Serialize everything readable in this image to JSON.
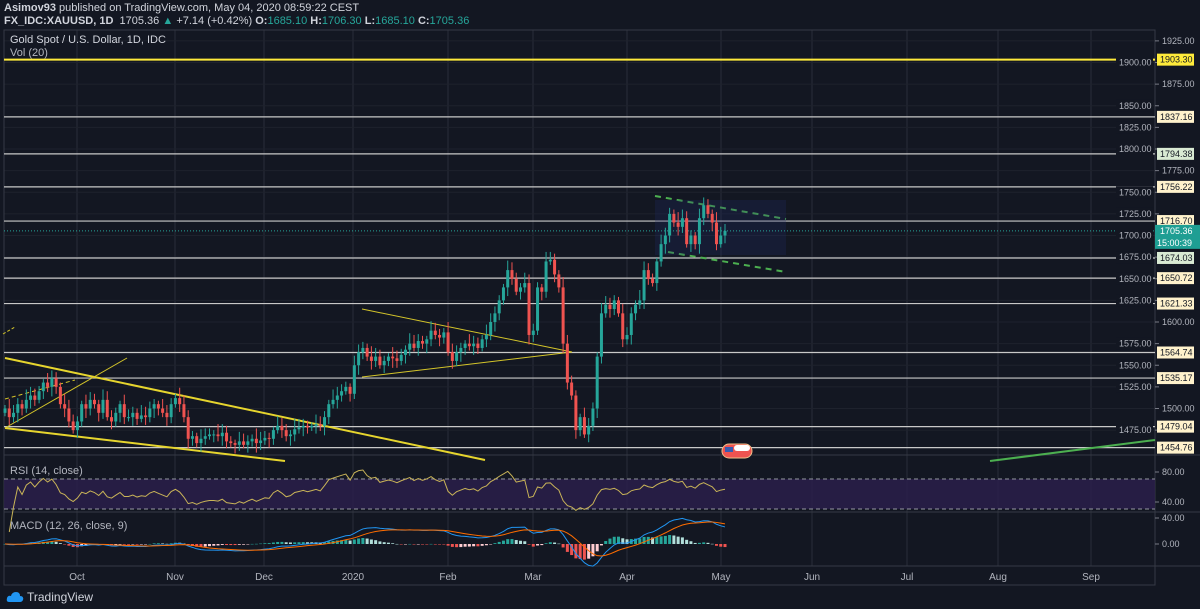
{
  "header": {
    "publisher": "Asimov93",
    "published_text": "published on TradingView.com, May 04, 2020 08:59:22 CEST",
    "symbol": "FX_IDC:XAUUSD, 1D",
    "last": "1705.36",
    "change": "+7.14 (+0.42%)",
    "o_label": "O:",
    "o": "1685.10",
    "h_label": "H:",
    "h": "1706.30",
    "l_label": "L:",
    "l": "1685.10",
    "c_label": "C:",
    "c": "1705.36"
  },
  "panes": {
    "main_title": "Gold Spot / U.S. Dollar, 1D, IDC",
    "volume_label": "Vol (20)",
    "rsi_label": "RSI (14, close)",
    "macd_label": "MACD (12, 26, close, 9)"
  },
  "footer": {
    "logo_text": "TradingView"
  },
  "colors": {
    "background": "#131722",
    "up": "#26a69a",
    "down": "#ef5350",
    "level_line": "#b2b5be",
    "major_level": "#ffeb3b",
    "trendline": "#d4c52a",
    "channel": "#4caf50",
    "rsi_line": "#c9b458",
    "rsi_fill": "#2a1e4a",
    "macd_line": "#2196f3",
    "signal_line": "#ff6d00"
  },
  "chart_data": {
    "type": "candlestick",
    "title": "Gold Spot / U.S. Dollar, 1D, IDC",
    "ylim": [
      1440,
      1935
    ],
    "y_ticks": [
      "1925.00",
      "1900.00",
      "1875.00",
      "1850.00",
      "1825.00",
      "1800.00",
      "1775.00",
      "1750.00",
      "1725.00",
      "1700.00",
      "1675.00",
      "1650.00",
      "1625.00",
      "1600.00",
      "1575.00",
      "1550.00",
      "1525.00",
      "1500.00",
      "1475.00"
    ],
    "x_ticks": [
      "Oct",
      "Nov",
      "Dec",
      "2020",
      "Feb",
      "Mar",
      "Apr",
      "May",
      "Jun",
      "Jul",
      "Aug",
      "Sep"
    ],
    "close": [
      1500,
      1490,
      1495,
      1505,
      1500,
      1510,
      1515,
      1510,
      1520,
      1530,
      1525,
      1535,
      1525,
      1505,
      1500,
      1485,
      1475,
      1485,
      1505,
      1500,
      1510,
      1505,
      1495,
      1510,
      1490,
      1485,
      1495,
      1505,
      1490,
      1490,
      1495,
      1488,
      1492,
      1490,
      1500,
      1505,
      1500,
      1495,
      1490,
      1505,
      1512,
      1505,
      1490,
      1465,
      1468,
      1460,
      1465,
      1468,
      1470,
      1470,
      1468,
      1472,
      1462,
      1460,
      1458,
      1462,
      1458,
      1462,
      1465,
      1460,
      1463,
      1466,
      1465,
      1475,
      1480,
      1475,
      1468,
      1470,
      1476,
      1478,
      1480,
      1478,
      1480,
      1482,
      1480,
      1490,
      1505,
      1510,
      1515,
      1520,
      1525,
      1517,
      1550,
      1565,
      1570,
      1560,
      1555,
      1560,
      1550,
      1555,
      1560,
      1558,
      1555,
      1562,
      1568,
      1575,
      1570,
      1578,
      1575,
      1580,
      1590,
      1585,
      1582,
      1588,
      1565,
      1555,
      1565,
      1570,
      1575,
      1572,
      1575,
      1570,
      1580,
      1585,
      1600,
      1610,
      1625,
      1640,
      1660,
      1650,
      1635,
      1640,
      1645,
      1585,
      1590,
      1640,
      1635,
      1670,
      1672,
      1655,
      1640,
      1575,
      1530,
      1515,
      1475,
      1490,
      1470,
      1480,
      1500,
      1560,
      1610,
      1620,
      1615,
      1625,
      1610,
      1580,
      1585,
      1610,
      1620,
      1625,
      1660,
      1650,
      1645,
      1670,
      1690,
      1700,
      1725,
      1715,
      1710,
      1720,
      1690,
      1700,
      1690,
      1720,
      1735,
      1725,
      1715,
      1690,
      1700,
      1705.36
    ],
    "levels": [
      {
        "price": 1903.3,
        "label": "1903.30",
        "style": "major"
      },
      {
        "price": 1837.16,
        "label": "1837.16",
        "style": "cream"
      },
      {
        "price": 1794.38,
        "label": "1794.38",
        "style": "green"
      },
      {
        "price": 1756.22,
        "label": "1756.22",
        "style": "cream"
      },
      {
        "price": 1716.7,
        "label": "1716.70",
        "style": "cream"
      },
      {
        "price": 1674.03,
        "label": "1674.03",
        "style": "green"
      },
      {
        "price": 1650.72,
        "label": "1650.72",
        "style": "cream"
      },
      {
        "price": 1621.33,
        "label": "1621.33",
        "style": "cream"
      },
      {
        "price": 1564.74,
        "label": "1564.74",
        "style": "cream"
      },
      {
        "price": 1535.17,
        "label": "1535.17",
        "style": "cream"
      },
      {
        "price": 1479.04,
        "label": "1479.04",
        "style": "cream"
      },
      {
        "price": 1454.76,
        "label": "1454.76",
        "style": "cream"
      }
    ],
    "last_price": {
      "price": 1705.36,
      "label": "1705.36",
      "countdown": "15:00:39"
    },
    "rsi": {
      "period": 14,
      "upper": 70,
      "lower": 30,
      "ticks": [
        "80.00",
        "40.00"
      ]
    },
    "macd": {
      "fast": 12,
      "slow": 26,
      "signal": 9,
      "ticks": [
        "40.00",
        "0.00"
      ]
    }
  }
}
